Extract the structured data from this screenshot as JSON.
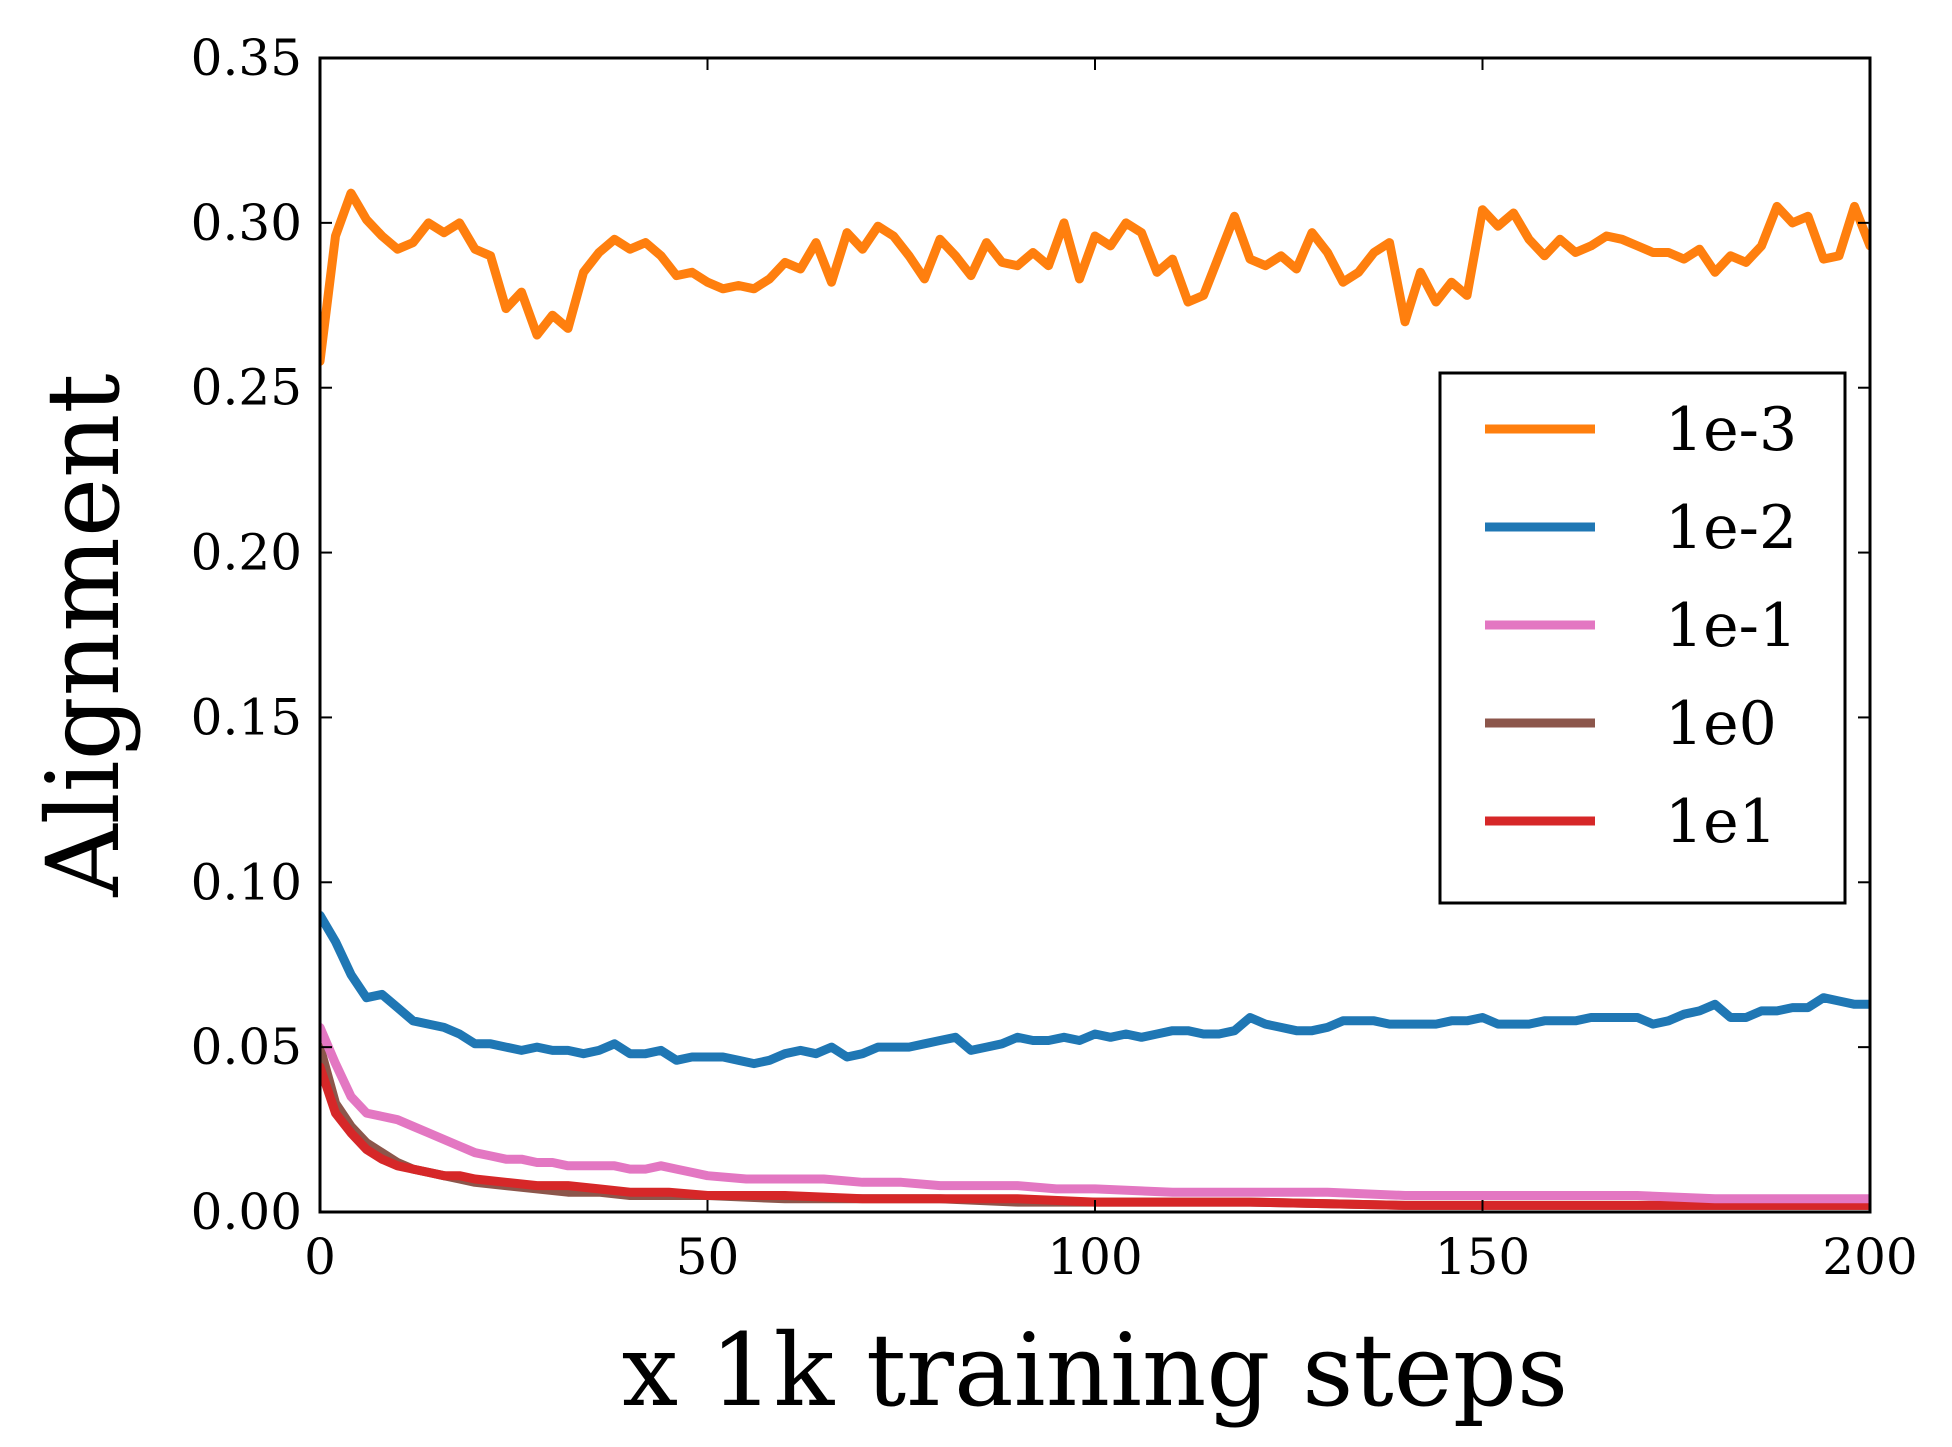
{
  "chart_data": {
    "type": "line",
    "title": "",
    "xlabel": "x 1k training steps",
    "ylabel": "Alignment",
    "xlim": [
      0,
      200
    ],
    "ylim": [
      0,
      0.35
    ],
    "xticks": [
      0,
      50,
      100,
      150,
      200
    ],
    "xtick_labels": [
      "0",
      "50",
      "100",
      "150",
      "200"
    ],
    "yticks": [
      0,
      0.05,
      0.1,
      0.15,
      0.2,
      0.25,
      0.3,
      0.35
    ],
    "ytick_labels": [
      "0.00",
      "0.05",
      "0.10",
      "0.15",
      "0.20",
      "0.25",
      "0.30",
      "0.35"
    ],
    "grid": false,
    "legend_position": "center-right",
    "series": [
      {
        "name": "1e-3",
        "color": "#ff7f0e",
        "x": [
          0,
          2,
          4,
          5,
          6,
          8,
          10,
          12,
          14,
          16,
          18,
          20,
          22,
          24,
          26,
          28,
          30,
          32,
          34,
          36,
          38,
          40,
          42,
          44,
          46,
          48,
          50,
          52,
          54,
          56,
          58,
          60,
          62,
          64,
          66,
          68,
          70,
          72,
          74,
          76,
          78,
          80,
          82,
          84,
          86,
          88,
          90,
          92,
          94,
          96,
          98,
          100,
          102,
          104,
          106,
          108,
          110,
          112,
          114,
          116,
          118,
          120,
          122,
          124,
          126,
          128,
          130,
          132,
          134,
          136,
          138,
          140,
          142,
          144,
          146,
          148,
          150,
          152,
          154,
          156,
          158,
          160,
          162,
          164,
          166,
          168,
          170,
          172,
          174,
          176,
          178,
          180,
          182,
          184,
          186,
          188,
          190,
          192,
          194,
          196,
          198,
          200
        ],
        "values": [
          0.258,
          0.296,
          0.309,
          0.305,
          0.301,
          0.296,
          0.292,
          0.294,
          0.3,
          0.297,
          0.3,
          0.292,
          0.29,
          0.274,
          0.279,
          0.266,
          0.272,
          0.268,
          0.285,
          0.291,
          0.295,
          0.292,
          0.294,
          0.29,
          0.284,
          0.285,
          0.282,
          0.28,
          0.281,
          0.28,
          0.283,
          0.288,
          0.286,
          0.294,
          0.282,
          0.297,
          0.292,
          0.299,
          0.296,
          0.29,
          0.283,
          0.295,
          0.29,
          0.284,
          0.294,
          0.288,
          0.287,
          0.291,
          0.287,
          0.3,
          0.283,
          0.296,
          0.293,
          0.3,
          0.297,
          0.285,
          0.289,
          0.276,
          0.278,
          0.29,
          0.302,
          0.289,
          0.287,
          0.29,
          0.286,
          0.297,
          0.291,
          0.282,
          0.285,
          0.291,
          0.294,
          0.27,
          0.285,
          0.276,
          0.282,
          0.278,
          0.304,
          0.299,
          0.303,
          0.295,
          0.29,
          0.295,
          0.291,
          0.293,
          0.296,
          0.295,
          0.293,
          0.291,
          0.291,
          0.289,
          0.292,
          0.285,
          0.29,
          0.288,
          0.293,
          0.305,
          0.3,
          0.302,
          0.289,
          0.29,
          0.305,
          0.293
        ],
        "legend_label": "1e-3"
      },
      {
        "name": "1e-2",
        "color": "#1f77b4",
        "x": [
          0,
          2,
          4,
          6,
          8,
          10,
          12,
          14,
          16,
          18,
          20,
          22,
          24,
          26,
          28,
          30,
          32,
          34,
          36,
          38,
          40,
          42,
          44,
          46,
          48,
          50,
          52,
          54,
          56,
          58,
          60,
          62,
          64,
          66,
          68,
          70,
          72,
          74,
          76,
          78,
          80,
          82,
          84,
          86,
          88,
          90,
          92,
          94,
          96,
          98,
          100,
          102,
          104,
          106,
          108,
          110,
          112,
          114,
          116,
          118,
          120,
          122,
          124,
          126,
          128,
          130,
          132,
          134,
          136,
          138,
          140,
          142,
          144,
          146,
          148,
          150,
          152,
          154,
          156,
          158,
          160,
          162,
          164,
          166,
          168,
          170,
          172,
          174,
          176,
          178,
          180,
          182,
          184,
          186,
          188,
          190,
          192,
          194,
          196,
          198,
          200
        ],
        "values": [
          0.09,
          0.082,
          0.072,
          0.065,
          0.066,
          0.062,
          0.058,
          0.057,
          0.056,
          0.054,
          0.051,
          0.051,
          0.05,
          0.049,
          0.05,
          0.049,
          0.049,
          0.048,
          0.049,
          0.051,
          0.048,
          0.048,
          0.049,
          0.046,
          0.047,
          0.047,
          0.047,
          0.046,
          0.045,
          0.046,
          0.048,
          0.049,
          0.048,
          0.05,
          0.047,
          0.048,
          0.05,
          0.05,
          0.05,
          0.051,
          0.052,
          0.053,
          0.049,
          0.05,
          0.051,
          0.053,
          0.052,
          0.052,
          0.053,
          0.052,
          0.054,
          0.053,
          0.054,
          0.053,
          0.054,
          0.055,
          0.055,
          0.054,
          0.054,
          0.055,
          0.059,
          0.057,
          0.056,
          0.055,
          0.055,
          0.056,
          0.058,
          0.058,
          0.058,
          0.057,
          0.057,
          0.057,
          0.057,
          0.058,
          0.058,
          0.059,
          0.057,
          0.057,
          0.057,
          0.058,
          0.058,
          0.058,
          0.059,
          0.059,
          0.059,
          0.059,
          0.057,
          0.058,
          0.06,
          0.061,
          0.063,
          0.059,
          0.059,
          0.061,
          0.061,
          0.062,
          0.062,
          0.065,
          0.064,
          0.063,
          0.063
        ],
        "legend_label": "1e-2"
      },
      {
        "name": "1e-1",
        "color": "#e377c2",
        "x": [
          0,
          2,
          4,
          6,
          8,
          10,
          12,
          14,
          16,
          18,
          20,
          22,
          24,
          26,
          28,
          30,
          32,
          34,
          36,
          38,
          40,
          42,
          44,
          46,
          48,
          50,
          55,
          60,
          65,
          70,
          75,
          80,
          85,
          90,
          95,
          100,
          110,
          120,
          130,
          140,
          150,
          160,
          170,
          180,
          190,
          200
        ],
        "values": [
          0.056,
          0.045,
          0.035,
          0.03,
          0.029,
          0.028,
          0.026,
          0.024,
          0.022,
          0.02,
          0.018,
          0.017,
          0.016,
          0.016,
          0.015,
          0.015,
          0.014,
          0.014,
          0.014,
          0.014,
          0.013,
          0.013,
          0.014,
          0.013,
          0.012,
          0.011,
          0.01,
          0.01,
          0.01,
          0.009,
          0.009,
          0.008,
          0.008,
          0.008,
          0.007,
          0.007,
          0.006,
          0.006,
          0.006,
          0.005,
          0.005,
          0.005,
          0.005,
          0.004,
          0.004,
          0.004
        ],
        "legend_label": "1e-1"
      },
      {
        "name": "1e0",
        "color": "#8c564b",
        "x": [
          0,
          2,
          4,
          6,
          8,
          10,
          12,
          14,
          16,
          18,
          20,
          24,
          28,
          32,
          36,
          40,
          45,
          50,
          60,
          70,
          80,
          90,
          100,
          120,
          140,
          160,
          180,
          200
        ],
        "values": [
          0.05,
          0.033,
          0.026,
          0.021,
          0.018,
          0.015,
          0.013,
          0.012,
          0.011,
          0.01,
          0.009,
          0.008,
          0.007,
          0.006,
          0.006,
          0.005,
          0.005,
          0.005,
          0.004,
          0.004,
          0.004,
          0.003,
          0.003,
          0.003,
          0.002,
          0.002,
          0.002,
          0.002
        ],
        "legend_label": "1e0"
      },
      {
        "name": "1e1",
        "color": "#d62728",
        "x": [
          0,
          2,
          4,
          6,
          8,
          10,
          12,
          14,
          16,
          18,
          20,
          24,
          28,
          32,
          36,
          40,
          45,
          50,
          60,
          70,
          80,
          90,
          100,
          120,
          140,
          160,
          180,
          200
        ],
        "values": [
          0.044,
          0.03,
          0.024,
          0.019,
          0.016,
          0.014,
          0.013,
          0.012,
          0.011,
          0.011,
          0.01,
          0.009,
          0.008,
          0.008,
          0.007,
          0.006,
          0.006,
          0.005,
          0.005,
          0.004,
          0.004,
          0.004,
          0.003,
          0.003,
          0.002,
          0.002,
          0.002,
          0.002
        ],
        "legend_label": "1e1"
      }
    ]
  }
}
